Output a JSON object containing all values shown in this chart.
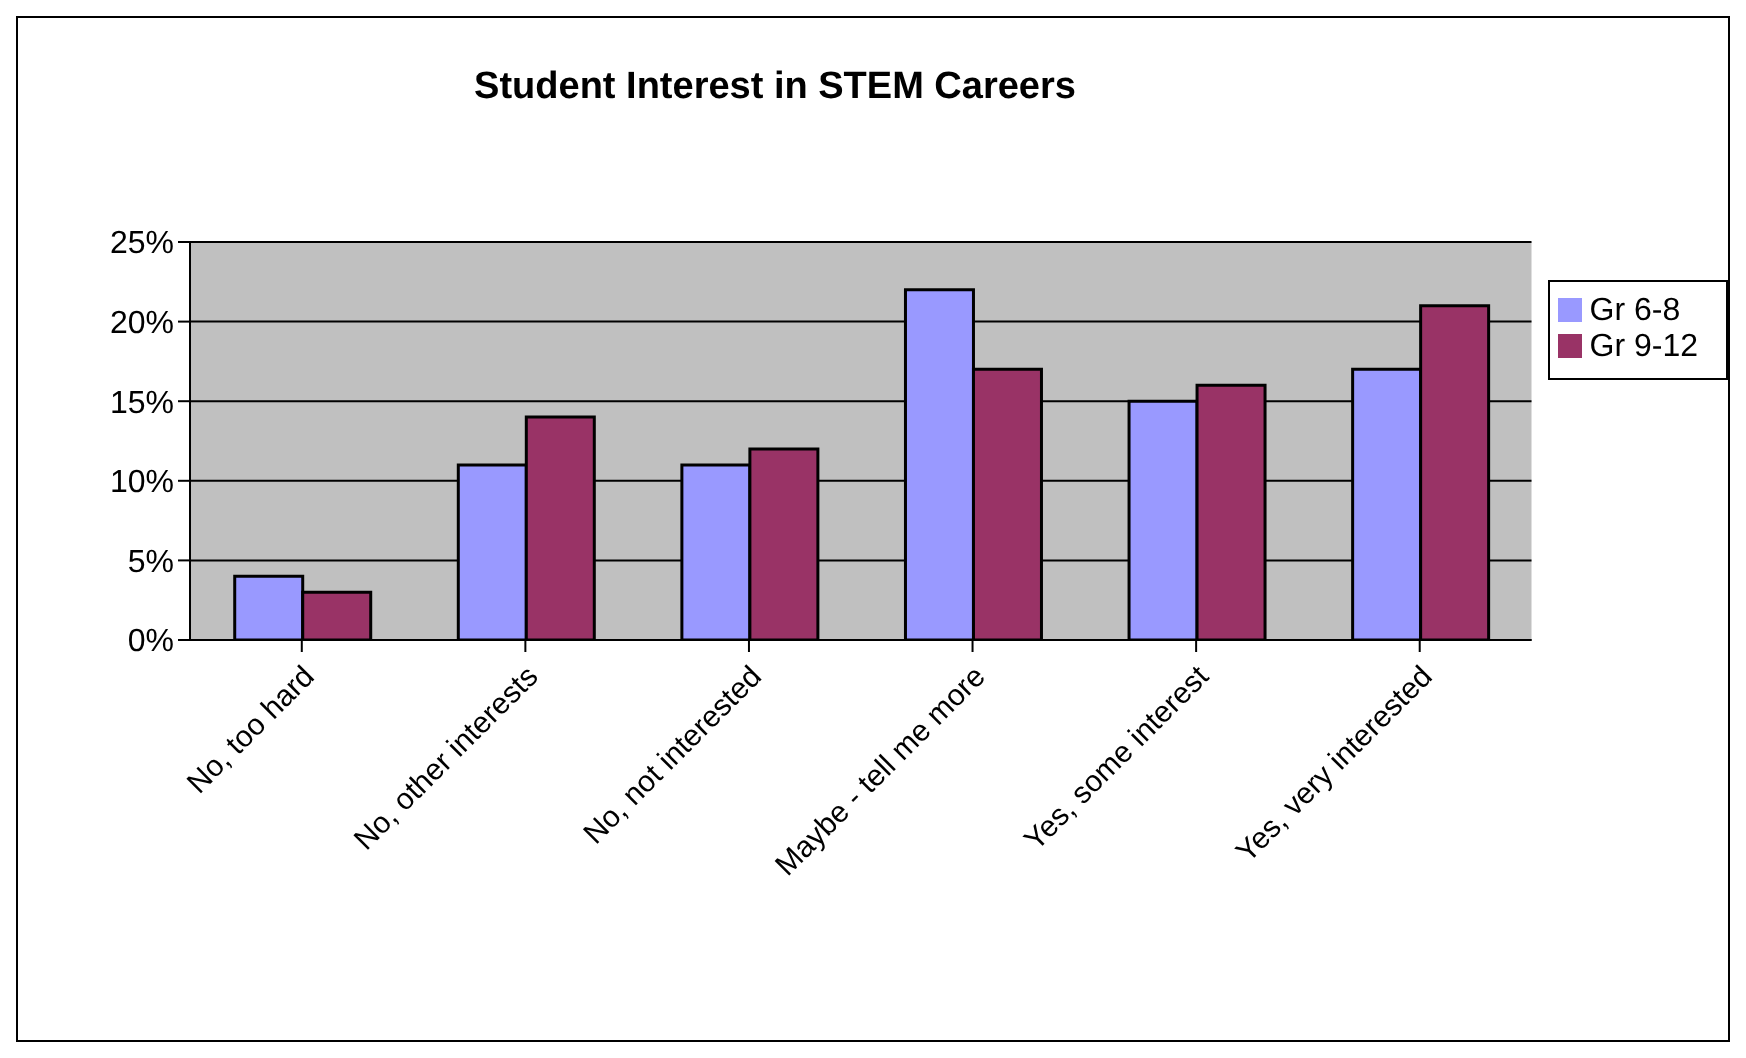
{
  "chart_data": {
    "type": "bar",
    "title": "Student Interest in STEM Careers",
    "categories": [
      "No, too hard",
      "No, other interests",
      "No, not interested",
      "Maybe - tell me more",
      "Yes, some interest",
      "Yes, very interested"
    ],
    "series": [
      {
        "name": "Gr 6-8",
        "color": "#9999ff",
        "values": [
          4,
          11,
          11,
          22,
          15,
          17
        ]
      },
      {
        "name": "Gr 9-12",
        "color": "#993366",
        "values": [
          3,
          14,
          12,
          17,
          16,
          21
        ]
      }
    ],
    "ylim": [
      0,
      25
    ],
    "yticks": [
      {
        "value": 0,
        "label": "0%"
      },
      {
        "value": 5,
        "label": "5%"
      },
      {
        "value": 10,
        "label": "10%"
      },
      {
        "value": 15,
        "label": "15%"
      },
      {
        "value": 20,
        "label": "20%"
      },
      {
        "value": 25,
        "label": "25%"
      }
    ],
    "grid": "y",
    "legend": "right"
  }
}
